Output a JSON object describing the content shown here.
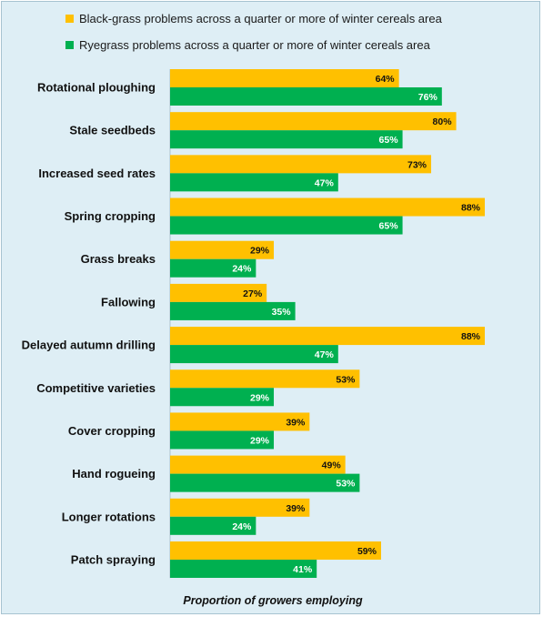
{
  "chart_data": {
    "type": "bar",
    "orientation": "horizontal",
    "title": "",
    "xlabel": "Proportion of growers employing",
    "ylabel": "",
    "xlim": [
      0,
      100
    ],
    "value_suffix": "%",
    "legend_position": "top",
    "grid": false,
    "categories": [
      "Rotational ploughing",
      "Stale seedbeds",
      "Increased seed rates",
      "Spring cropping",
      "Grass breaks",
      "Fallowing",
      "Delayed autumn drilling",
      "Competitive varieties",
      "Cover cropping",
      "Hand rogueing",
      "Longer rotations",
      "Patch spraying"
    ],
    "series": [
      {
        "name": "Black-grass problems across a quarter or more of winter cereals area",
        "color": "#ffc000",
        "label_color": "#111111",
        "values": [
          64,
          80,
          73,
          88,
          29,
          27,
          88,
          53,
          39,
          49,
          39,
          59
        ]
      },
      {
        "name": "Ryegrass problems across a quarter or more of winter cereals area",
        "color": "#00b050",
        "label_color": "#ffffff",
        "values": [
          76,
          65,
          47,
          65,
          24,
          35,
          47,
          29,
          29,
          53,
          24,
          41
        ]
      }
    ]
  }
}
